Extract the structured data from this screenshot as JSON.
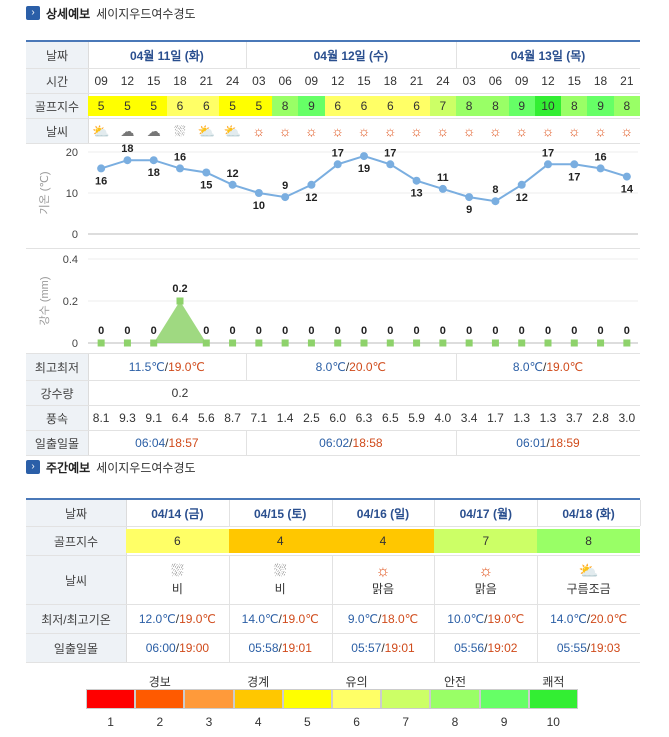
{
  "detail": {
    "header": {
      "title": "상세예보",
      "course": "세이지우드여수경도"
    },
    "labels": {
      "date": "날짜",
      "time": "시간",
      "golf": "골프지수",
      "weather": "날씨",
      "temp_axis": "기온 (℃)",
      "rain_axis": "강수 (mm)",
      "minmax": "최고최저",
      "rain": "강수량",
      "wind": "풍속",
      "sun": "일출일몰"
    },
    "days": [
      {
        "label": "04월 11일 (화)",
        "minmax_low": "11.5℃",
        "minmax_high": "19.0℃",
        "sunrise": "06:04",
        "sunset": "18:57"
      },
      {
        "label": "04월 12일 (수)",
        "minmax_low": "8.0℃",
        "minmax_high": "20.0℃",
        "sunrise": "06:02",
        "sunset": "18:58"
      },
      {
        "label": "04월 13일 (목)",
        "minmax_low": "8.0℃",
        "minmax_high": "19.0℃",
        "sunrise": "06:01",
        "sunset": "18:59"
      }
    ],
    "times": [
      "09",
      "12",
      "15",
      "18",
      "21",
      "24",
      "03",
      "06",
      "09",
      "12",
      "15",
      "18",
      "21",
      "24",
      "03",
      "06",
      "09",
      "12",
      "15",
      "18",
      "21"
    ],
    "golf": [
      "5",
      "5",
      "5",
      "6",
      "6",
      "5",
      "5",
      "8",
      "9",
      "6",
      "6",
      "6",
      "6",
      "7",
      "8",
      "8",
      "9",
      "10",
      "8",
      "9",
      "8"
    ],
    "weather_icons": [
      "partly-cloudy-icon",
      "cloud-icon",
      "cloud-icon",
      "rain-cloud-icon",
      "partly-cloudy-icon",
      "partly-cloudy-icon",
      "sun-icon",
      "sun-icon",
      "sun-icon",
      "sun-icon",
      "sun-icon",
      "sun-icon",
      "sun-icon",
      "sun-icon",
      "sun-icon",
      "sun-icon",
      "sun-icon",
      "sun-icon",
      "sun-icon",
      "sun-icon",
      "sun-icon"
    ],
    "rain": [
      "",
      "",
      "",
      "0.2",
      "",
      "",
      "",
      "",
      "",
      "",
      "",
      "",
      "",
      "",
      "",
      "",
      "",
      "",
      "",
      "",
      ""
    ],
    "wind": [
      "8.1",
      "9.3",
      "9.1",
      "6.4",
      "5.6",
      "8.7",
      "7.1",
      "1.4",
      "2.5",
      "6.0",
      "6.3",
      "6.5",
      "5.9",
      "4.0",
      "3.4",
      "1.7",
      "1.3",
      "1.3",
      "3.7",
      "2.8",
      "3.0"
    ]
  },
  "chart_data": [
    {
      "type": "line",
      "x": [
        "09",
        "12",
        "15",
        "18",
        "21",
        "24",
        "03",
        "06",
        "09",
        "12",
        "15",
        "18",
        "21",
        "24",
        "03",
        "06",
        "09",
        "12",
        "15",
        "18",
        "21"
      ],
      "values": [
        16,
        18,
        18,
        16,
        15,
        12,
        10,
        9,
        12,
        17,
        19,
        17,
        13,
        11,
        9,
        8,
        12,
        17,
        17,
        16,
        14
      ],
      "data_labels": [
        "16",
        "18",
        "18",
        "16",
        "15",
        "12",
        "10",
        "9",
        "12",
        "17",
        "19",
        "17",
        "13",
        "11",
        "9",
        "8",
        "12",
        "17",
        "17",
        "16",
        "14"
      ],
      "ylabel": "기온 (℃)",
      "yticks": [
        "20",
        "10",
        "0"
      ],
      "ylim": [
        0,
        20
      ],
      "color": "#7aaee0"
    },
    {
      "type": "area",
      "x": [
        "09",
        "12",
        "15",
        "18",
        "21",
        "24",
        "03",
        "06",
        "09",
        "12",
        "15",
        "18",
        "21",
        "24",
        "03",
        "06",
        "09",
        "12",
        "15",
        "18",
        "21"
      ],
      "values": [
        0,
        0,
        0,
        0.2,
        0,
        0,
        0,
        0,
        0,
        0,
        0,
        0,
        0,
        0,
        0,
        0,
        0,
        0,
        0,
        0,
        0
      ],
      "data_labels": [
        "0",
        "0",
        "0",
        "0.2",
        "0",
        "0",
        "0",
        "0",
        "0",
        "0",
        "0",
        "0",
        "0",
        "0",
        "0",
        "0",
        "0",
        "0",
        "0",
        "0",
        "0"
      ],
      "ylabel": "강수 (mm)",
      "yticks": [
        "0.4",
        "0.2",
        "0"
      ],
      "ylim": [
        0,
        0.4
      ],
      "color": "#8ed26b"
    }
  ],
  "weekly": {
    "header": {
      "title": "주간예보",
      "course": "세이지우드여수경도"
    },
    "labels": {
      "date": "날짜",
      "golf": "골프지수",
      "weather": "날씨",
      "temp": "최저/최고기온",
      "sun": "일출일몰"
    },
    "days": [
      {
        "date": "04/14 (금)",
        "golf": "6",
        "icon": "rain-cloud-icon",
        "weather": "비",
        "low": "12.0℃",
        "high": "19.0℃",
        "sunrise": "06:00",
        "sunset": "19:00"
      },
      {
        "date": "04/15 (토)",
        "golf": "4",
        "icon": "rain-cloud-icon",
        "weather": "비",
        "low": "14.0℃",
        "high": "19.0℃",
        "sunrise": "05:58",
        "sunset": "19:01"
      },
      {
        "date": "04/16 (일)",
        "golf": "4",
        "icon": "sun-icon",
        "weather": "맑음",
        "low": "9.0℃",
        "high": "18.0℃",
        "sunrise": "05:57",
        "sunset": "19:01"
      },
      {
        "date": "04/17 (월)",
        "golf": "7",
        "icon": "sun-icon",
        "weather": "맑음",
        "low": "10.0℃",
        "high": "19.0℃",
        "sunrise": "05:56",
        "sunset": "19:02"
      },
      {
        "date": "04/18 (화)",
        "golf": "8",
        "icon": "partly-cloudy-icon",
        "weather": "구름조금",
        "low": "14.0℃",
        "high": "20.0℃",
        "sunrise": "05:55",
        "sunset": "19:03"
      }
    ]
  },
  "scale": {
    "categories": [
      "경보",
      "경계",
      "유의",
      "안전",
      "쾌적"
    ],
    "levels": [
      "1",
      "2",
      "3",
      "4",
      "5",
      "6",
      "7",
      "8",
      "9",
      "10"
    ],
    "colors": [
      "#ff0000",
      "#ff5a00",
      "#ff9a3a",
      "#ffc700",
      "#ffff00",
      "#ffff66",
      "#ccff66",
      "#99ff66",
      "#66ff66",
      "#33ee33"
    ]
  }
}
